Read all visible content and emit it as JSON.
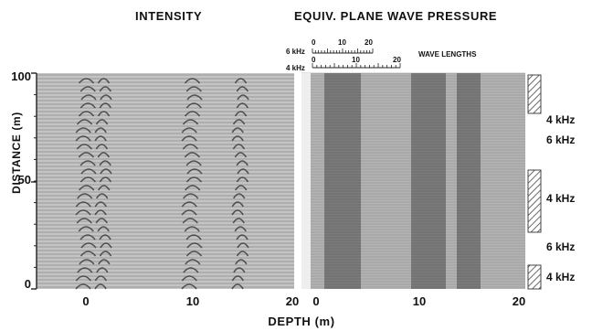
{
  "titles": {
    "left": "INTENSITY",
    "right": "EQUIV. PLANE WAVE PRESSURE"
  },
  "axes": {
    "ylabel": "DISTANCE (m)",
    "xlabel": "DEPTH (m)",
    "y_ticks": [
      "100",
      "50",
      "0"
    ],
    "x_ticks_left": [
      "0",
      "10",
      "20"
    ],
    "x_ticks_right": [
      "0",
      "10",
      "20"
    ]
  },
  "wavelength_scale": {
    "label": "WAVE LENGTHS",
    "freq_top": "6 kHz",
    "freq_bottom": "4 kHz",
    "top_ticks": [
      "0",
      "10",
      "20"
    ],
    "bottom_ticks": [
      "0",
      "10",
      "20"
    ]
  },
  "frequency_bands": [
    {
      "label": "4 kHz",
      "marker": true
    },
    {
      "label": "6 kHz",
      "marker": false
    },
    {
      "label": "4 kHz",
      "marker": true
    },
    {
      "label": "6 kHz",
      "marker": false
    },
    {
      "label": "4 kHz",
      "marker": true
    }
  ]
}
